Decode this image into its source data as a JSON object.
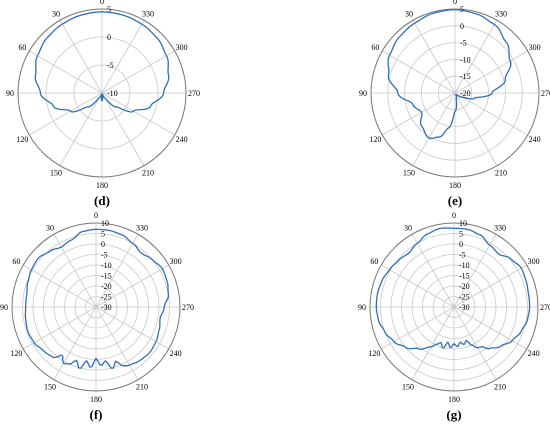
{
  "colors": {
    "trace": "#2f6fb8",
    "grid": "#c8c8c8",
    "text": "#000000"
  },
  "chart_data": [
    {
      "type": "polar-line",
      "caption": "(d)",
      "angle_ticks": [
        "0",
        "30",
        "60",
        "90",
        "120",
        "150",
        "180",
        "210",
        "240",
        "270",
        "300",
        "330"
      ],
      "radial_ticks": [
        "5",
        "0",
        "-5",
        "-10"
      ],
      "rlim": [
        -10,
        5
      ],
      "grid": true,
      "series": [
        {
          "theta_deg": [
            0,
            15,
            30,
            45,
            60,
            75,
            90,
            105,
            120,
            135,
            150,
            165,
            180,
            195,
            210,
            225,
            240,
            255,
            270,
            285,
            300,
            315,
            330,
            345,
            360
          ],
          "r_db": [
            4.5,
            4.4,
            4.2,
            3.9,
            3.3,
            2.3,
            1.0,
            -1.0,
            -3.5,
            -6.5,
            -9.0,
            -9.8,
            -8.6,
            -9.8,
            -9.0,
            -6.5,
            -3.5,
            -1.0,
            1.0,
            2.3,
            3.3,
            3.9,
            4.2,
            4.4,
            4.5
          ]
        }
      ]
    },
    {
      "type": "polar-line",
      "caption": "(e)",
      "angle_ticks": [
        "0",
        "30",
        "60",
        "90",
        "120",
        "150",
        "180",
        "210",
        "240",
        "270",
        "300",
        "330"
      ],
      "radial_ticks": [
        "5",
        "0",
        "-5",
        "-10",
        "-15",
        "-20"
      ],
      "rlim": [
        -20,
        5
      ],
      "grid": true,
      "series": [
        {
          "theta_deg": [
            0,
            15,
            30,
            45,
            60,
            75,
            90,
            105,
            120,
            135,
            150,
            160,
            170,
            180,
            195,
            210,
            225,
            240,
            255,
            270,
            285,
            300,
            315,
            330,
            345,
            360
          ],
          "r_db": [
            4.8,
            4.6,
            4.0,
            3.5,
            2.5,
            0.5,
            -3.0,
            -7.0,
            -8.5,
            -6.0,
            -4.5,
            -6.0,
            -9.5,
            -14.5,
            -18.5,
            -19.5,
            -19.0,
            -17.5,
            -14.0,
            -9.0,
            -4.5,
            -1.0,
            1.5,
            3.5,
            4.4,
            4.8
          ]
        }
      ]
    },
    {
      "type": "polar-line",
      "caption": "(f)",
      "angle_ticks": [
        "0",
        "30",
        "60",
        "90",
        "120",
        "150",
        "180",
        "210",
        "240",
        "270",
        "300",
        "330"
      ],
      "radial_ticks": [
        "10",
        "5",
        "0",
        "-5",
        "-10",
        "-15",
        "-20",
        "-25",
        "-30"
      ],
      "rlim": [
        -30,
        10
      ],
      "grid": true,
      "series": [
        {
          "theta_deg": [
            0,
            10,
            20,
            30,
            40,
            50,
            60,
            70,
            80,
            90,
            100,
            110,
            120,
            130,
            140,
            145,
            150,
            155,
            160,
            165,
            170,
            175,
            180,
            185,
            190,
            195,
            200,
            205,
            210,
            220,
            230,
            240,
            250,
            260,
            270,
            280,
            290,
            300,
            310,
            320,
            330,
            340,
            350,
            360
          ],
          "r_db": [
            7.0,
            6.5,
            4.0,
            3.0,
            4.5,
            6.0,
            5.5,
            4.5,
            3.5,
            3.5,
            4.0,
            4.5,
            4.0,
            2.5,
            1.5,
            -2.0,
            1.0,
            0.0,
            -3.0,
            0.5,
            -4.0,
            -1.0,
            -5.5,
            -2.0,
            -4.0,
            0.5,
            -2.5,
            1.0,
            2.0,
            3.0,
            3.5,
            3.0,
            2.0,
            1.0,
            2.5,
            5.0,
            6.0,
            6.5,
            5.0,
            3.5,
            5.0,
            6.5,
            7.0,
            7.0
          ]
        }
      ]
    },
    {
      "type": "polar-line",
      "caption": "(g)",
      "angle_ticks": [
        "0",
        "30",
        "60",
        "90",
        "120",
        "150",
        "180",
        "210",
        "240",
        "270",
        "300",
        "330"
      ],
      "radial_ticks": [
        "10",
        "5",
        "0",
        "-5",
        "-10",
        "-15",
        "-20",
        "-25",
        "-30"
      ],
      "rlim": [
        -30,
        10
      ],
      "grid": true,
      "series": [
        {
          "theta_deg": [
            0,
            10,
            20,
            30,
            40,
            50,
            60,
            70,
            80,
            90,
            100,
            110,
            120,
            130,
            140,
            150,
            155,
            160,
            165,
            170,
            175,
            180,
            185,
            190,
            195,
            200,
            205,
            210,
            215,
            220,
            230,
            240,
            250,
            260,
            270,
            280,
            290,
            300,
            310,
            320,
            330,
            340,
            350,
            360
          ],
          "r_db": [
            7.5,
            8.0,
            7.0,
            5.0,
            3.5,
            4.5,
            5.5,
            6.5,
            7.0,
            7.0,
            6.5,
            5.0,
            3.0,
            0.0,
            -4.0,
            -8.0,
            -10.5,
            -12.0,
            -9.5,
            -13.0,
            -10.5,
            -12.5,
            -11.0,
            -13.0,
            -11.5,
            -13.0,
            -10.0,
            -7.5,
            -7.0,
            -4.0,
            -1.0,
            2.0,
            4.0,
            5.5,
            6.0,
            6.0,
            6.5,
            7.0,
            5.5,
            3.0,
            4.0,
            6.5,
            7.5,
            7.5
          ]
        }
      ]
    }
  ]
}
